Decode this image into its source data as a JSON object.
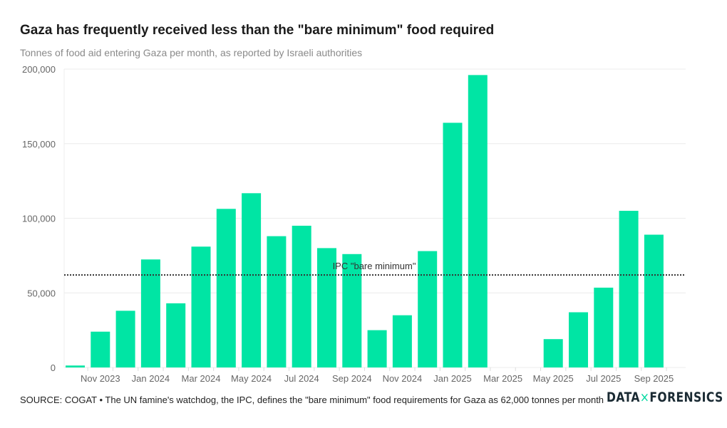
{
  "chart_data": {
    "type": "bar",
    "title": "Gaza has frequently received less than the \"bare minimum\" food required",
    "subtitle": "Tonnes of food aid entering Gaza per month, as reported by Israeli authorities",
    "xlabel": "",
    "ylabel": "",
    "categories": [
      "Oct 2023",
      "Nov 2023",
      "Dec 2023",
      "Jan 2024",
      "Feb 2024",
      "Mar 2024",
      "Apr 2024",
      "May 2024",
      "Jun 2024",
      "Jul 2024",
      "Aug 2024",
      "Sep 2024",
      "Oct 2024",
      "Nov 2024",
      "Dec 2024",
      "Jan 2025",
      "Feb 2025",
      "Mar 2025",
      "Apr 2025",
      "May 2025",
      "Jun 2025",
      "Jul 2025",
      "Aug 2025",
      "Sep 2025"
    ],
    "tick_labels": [
      "Nov 2023",
      "Jan 2024",
      "Mar 2024",
      "May 2024",
      "Jul 2024",
      "Sep 2024",
      "Nov 2024",
      "Jan 2025",
      "Mar 2025",
      "May 2025",
      "Jul 2025",
      "Sep 2025"
    ],
    "values": [
      1300,
      24000,
      38000,
      72400,
      43000,
      81000,
      106300,
      116800,
      88000,
      95000,
      80000,
      76000,
      25000,
      35000,
      78000,
      164000,
      196000,
      0,
      0,
      19000,
      37000,
      53500,
      105000,
      89000
    ],
    "ylim": [
      0,
      200000
    ],
    "yticks": [
      0,
      50000,
      100000,
      150000,
      200000
    ],
    "ytick_labels": [
      "0",
      "50,000",
      "100,000",
      "150,000",
      "200,000"
    ],
    "grid": true,
    "reference_line": {
      "value": 62000,
      "label": "IPC \"bare minimum\""
    },
    "bar_color": "#00e5a4"
  },
  "footer": {
    "source": "SOURCE: COGAT • The UN famine's watchdog, the IPC, defines the \"bare minimum\" food requirements for Gaza as 62,000 tonnes per month"
  },
  "logo": {
    "left": "DATA",
    "mark": "×",
    "right": "FORENSICS"
  }
}
